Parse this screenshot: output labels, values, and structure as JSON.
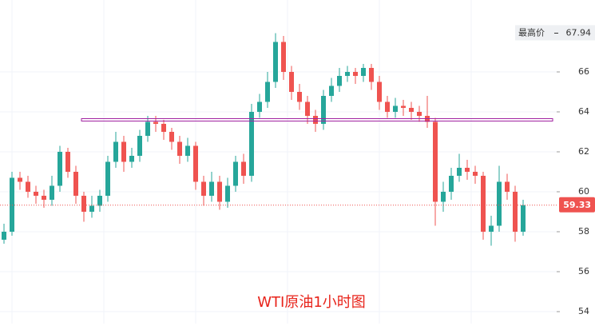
{
  "chart_data": {
    "type": "candlestick",
    "title": "WTI原油1小时图",
    "open": [
      57.6,
      58.0,
      60.7,
      60.5,
      60.0,
      59.8,
      59.6,
      60.3,
      62.0,
      61.0,
      59.8,
      59.0,
      59.3,
      59.8,
      61.5,
      62.5,
      61.5,
      61.8,
      62.8,
      63.5,
      63.4,
      63.0,
      62.5,
      61.8,
      62.3,
      60.5,
      59.8,
      60.5,
      59.5,
      60.3,
      61.5,
      60.8,
      64.0,
      64.5,
      65.5,
      67.5,
      66.0,
      65.0,
      64.5,
      63.8,
      63.4,
      64.8,
      65.3,
      65.8,
      66.0,
      65.8,
      66.2,
      65.5,
      64.5,
      64.0,
      64.3,
      64.2,
      64.0,
      63.8,
      63.5,
      59.5,
      60.0,
      60.8,
      61.2,
      61.0,
      60.8,
      58.0,
      58.3,
      60.5,
      60.0,
      58.0
    ],
    "high": [
      58.4,
      61.0,
      61.0,
      60.8,
      60.3,
      60.1,
      60.8,
      62.3,
      62.2,
      61.3,
      60.0,
      59.8,
      60.1,
      61.8,
      63.0,
      62.8,
      62.2,
      63.1,
      63.8,
      63.8,
      63.6,
      63.2,
      62.8,
      62.7,
      62.5,
      60.8,
      61.0,
      60.8,
      60.7,
      61.8,
      61.9,
      64.4,
      64.9,
      66.0,
      67.94,
      67.8,
      66.3,
      65.4,
      64.8,
      64.1,
      65.1,
      65.7,
      66.2,
      66.3,
      66.2,
      66.4,
      66.4,
      65.8,
      64.8,
      64.7,
      64.6,
      64.5,
      64.3,
      64.8,
      63.7,
      60.5,
      61.2,
      61.9,
      61.6,
      61.3,
      61.0,
      58.8,
      61.3,
      60.9,
      60.3,
      59.6
    ],
    "low": [
      57.4,
      57.8,
      60.1,
      59.7,
      59.4,
      59.2,
      59.3,
      60.0,
      60.7,
      59.4,
      58.5,
      58.7,
      59.0,
      59.5,
      61.2,
      61.0,
      61.2,
      61.5,
      62.5,
      63.0,
      62.6,
      62.1,
      61.4,
      61.5,
      60.1,
      59.3,
      59.5,
      59.1,
      59.2,
      60.0,
      60.4,
      60.5,
      63.7,
      64.2,
      65.2,
      65.6,
      64.6,
      64.1,
      63.4,
      63.0,
      63.1,
      64.5,
      65.0,
      65.5,
      65.4,
      65.5,
      65.1,
      64.1,
      63.7,
      63.7,
      63.8,
      63.6,
      63.5,
      63.2,
      58.3,
      59.0,
      59.6,
      60.5,
      60.6,
      60.4,
      57.6,
      57.3,
      58.0,
      59.6,
      57.5,
      57.8
    ],
    "close": [
      58.0,
      60.7,
      60.5,
      60.0,
      59.8,
      59.6,
      60.3,
      62.0,
      61.0,
      59.8,
      59.0,
      59.3,
      59.8,
      61.5,
      62.5,
      61.5,
      61.8,
      62.8,
      63.5,
      63.4,
      63.0,
      62.5,
      61.8,
      62.3,
      60.5,
      59.8,
      60.5,
      59.5,
      60.3,
      61.5,
      60.8,
      64.0,
      64.5,
      65.5,
      67.5,
      66.0,
      65.0,
      64.5,
      63.8,
      63.4,
      64.8,
      65.3,
      65.8,
      66.0,
      65.8,
      66.2,
      65.5,
      64.5,
      64.0,
      64.3,
      64.2,
      64.0,
      63.8,
      63.5,
      59.5,
      60.0,
      60.8,
      61.2,
      61.0,
      60.8,
      58.0,
      58.3,
      60.5,
      60.0,
      58.0,
      59.33
    ],
    "up_color": "#26a69a",
    "down_color": "#ef5350",
    "ylim": [
      53.4,
      69.6
    ],
    "yticks": [
      54,
      56,
      58,
      60,
      62,
      64,
      66
    ],
    "grid": true,
    "reference_line": {
      "value": 63.6,
      "color": "#a020a0"
    },
    "high_label": "最高价"
  }
}
